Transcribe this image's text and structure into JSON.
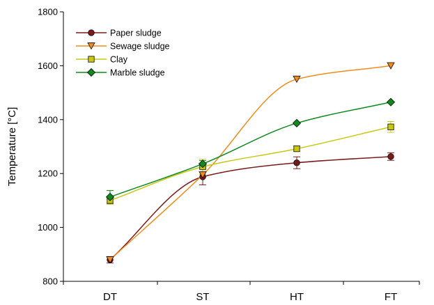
{
  "chart_data": {
    "type": "line",
    "title": "",
    "xlabel": "",
    "ylabel": "Temperature [°C]",
    "categories": [
      "DT",
      "ST",
      "HT",
      "FT"
    ],
    "ylim": [
      800,
      1800
    ],
    "yticks": [
      800,
      1000,
      1200,
      1400,
      1600,
      1800
    ],
    "grid": false,
    "legend_position": "top-left",
    "series": [
      {
        "name": "Paper sludge",
        "marker": "circle",
        "color": "#7b1a1a",
        "values": [
          880,
          1188,
          1240,
          1263
        ],
        "errors": [
          12,
          30,
          22,
          14
        ]
      },
      {
        "name": "Sewage sludge",
        "marker": "triangle-down",
        "color": "#f08c1e",
        "values": [
          880,
          1195,
          1550,
          1600
        ],
        "errors": [
          0,
          10,
          0,
          0
        ]
      },
      {
        "name": "Clay",
        "marker": "square",
        "color": "#c8c814",
        "values": [
          1100,
          1225,
          1292,
          1373
        ],
        "errors": [
          14,
          28,
          10,
          20
        ]
      },
      {
        "name": "Marble sludge",
        "marker": "diamond",
        "color": "#0f8a1e",
        "values": [
          1113,
          1236,
          1387,
          1465
        ],
        "errors": [
          24,
          12,
          0,
          0
        ]
      }
    ]
  }
}
